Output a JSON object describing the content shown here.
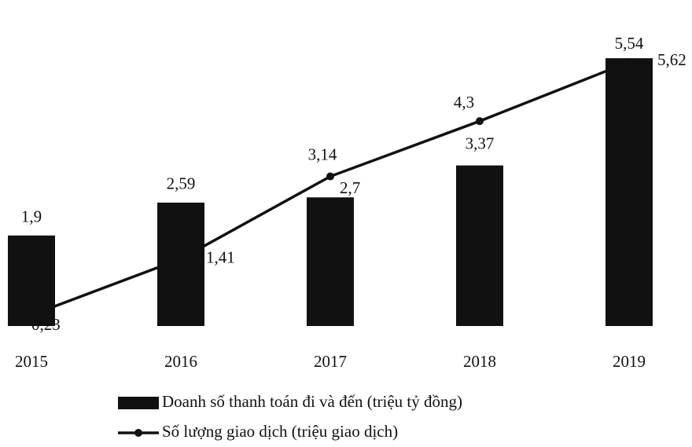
{
  "chart_data": {
    "type": "bar-line",
    "categories": [
      "2015",
      "2016",
      "2017",
      "2018",
      "2019"
    ],
    "series": [
      {
        "name": "Doanh số thanh toán đi và đến (triệu tỷ đồng)",
        "type": "bar",
        "color": "#111111",
        "values": [
          1.9,
          2.59,
          2.7,
          3.37,
          5.62
        ],
        "value_labels": [
          "1,9",
          "2,59",
          "2,7",
          "3,37",
          "5,62"
        ]
      },
      {
        "name": "Số lượng giao dịch (triệu giao dịch)",
        "type": "line",
        "color": "#111111",
        "values": [
          0.23,
          1.41,
          3.14,
          4.3,
          5.54
        ],
        "value_labels": [
          "0,23",
          "1,41",
          "3,14",
          "4,3",
          "5,54"
        ]
      }
    ],
    "ylim": [
      0,
      6.1
    ]
  }
}
